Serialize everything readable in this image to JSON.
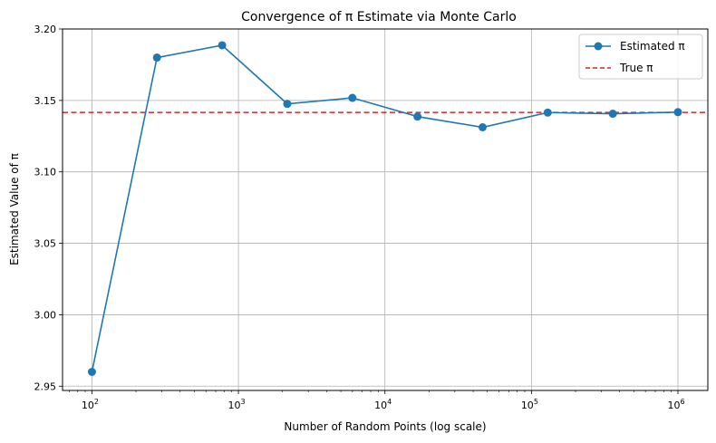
{
  "chart_data": {
    "type": "line",
    "title": "Convergence of π Estimate via Monte Carlo",
    "xlabel": "Number of Random Points (log scale)",
    "ylabel": "Estimated Value of π",
    "xscale": "log",
    "xlim": [
      63,
      1600000
    ],
    "ylim": [
      2.947,
      3.2
    ],
    "grid": true,
    "legend_position": "top-right",
    "xticks": [
      {
        "value": 100,
        "base": "10",
        "exp": "2"
      },
      {
        "value": 1000,
        "base": "10",
        "exp": "3"
      },
      {
        "value": 10000,
        "base": "10",
        "exp": "4"
      },
      {
        "value": 100000,
        "base": "10",
        "exp": "5"
      },
      {
        "value": 1000000,
        "base": "10",
        "exp": "6"
      }
    ],
    "yticks": [
      "2.95",
      "3.00",
      "3.05",
      "3.10",
      "3.15",
      "3.20"
    ],
    "x": [
      100,
      278,
      774,
      2154,
      5995,
      16681,
      46416,
      129155,
      359381,
      1000000
    ],
    "series": [
      {
        "name": "Estimated π",
        "color": "#1f77b4",
        "style": "solid",
        "marker": "circle",
        "values": [
          2.96,
          3.18,
          3.1886,
          3.1476,
          3.1518,
          3.1387,
          3.1312,
          3.1415,
          3.1407,
          3.1418
        ]
      }
    ],
    "reference_lines": [
      {
        "name": "True π",
        "color": "#d62728",
        "style": "dashed",
        "value": 3.14159
      }
    ],
    "colors": {
      "grid": "#b0b0b0",
      "axes": "#000000"
    }
  }
}
